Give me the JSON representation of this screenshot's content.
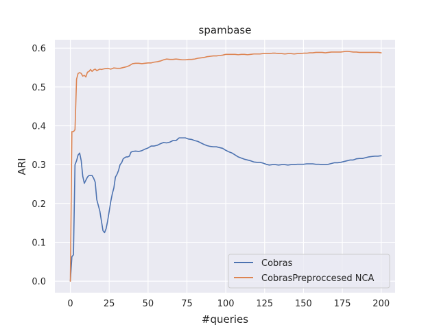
{
  "chart_data": {
    "type": "line",
    "title": "spambase",
    "xlabel": "#queries",
    "ylabel": "ARI",
    "xlim": [
      -9.95,
      208.95
    ],
    "ylim": [
      -0.0296,
      0.6216
    ],
    "xticks": [
      0,
      25,
      50,
      75,
      100,
      125,
      150,
      175,
      200
    ],
    "xtick_labels": [
      "0",
      "25",
      "50",
      "75",
      "100",
      "125",
      "150",
      "175",
      "200"
    ],
    "yticks": [
      0.0,
      0.1,
      0.2,
      0.3,
      0.4,
      0.5,
      0.6
    ],
    "ytick_labels": [
      "0.0",
      "0.1",
      "0.2",
      "0.3",
      "0.4",
      "0.5",
      "0.6"
    ],
    "grid": true,
    "legend": "lower-right",
    "colors": {
      "background": "#eaeaf2",
      "grid": "#ffffff",
      "text": "#262626"
    },
    "series": [
      {
        "name": "Cobras",
        "color": "#4c72b0",
        "points": [
          [
            0,
            0.0
          ],
          [
            1,
            0.063
          ],
          [
            2,
            0.068
          ],
          [
            3,
            0.3
          ],
          [
            4,
            0.31
          ],
          [
            5,
            0.325
          ],
          [
            6,
            0.33
          ],
          [
            7,
            0.31
          ],
          [
            8,
            0.27
          ],
          [
            9,
            0.252
          ],
          [
            10,
            0.26
          ],
          [
            11,
            0.268
          ],
          [
            12,
            0.272
          ],
          [
            13,
            0.272
          ],
          [
            14,
            0.272
          ],
          [
            15,
            0.265
          ],
          [
            16,
            0.255
          ],
          [
            17,
            0.21
          ],
          [
            18,
            0.195
          ],
          [
            19,
            0.18
          ],
          [
            20,
            0.155
          ],
          [
            21,
            0.13
          ],
          [
            22,
            0.125
          ],
          [
            23,
            0.135
          ],
          [
            24,
            0.155
          ],
          [
            25,
            0.18
          ],
          [
            26,
            0.205
          ],
          [
            27,
            0.225
          ],
          [
            28,
            0.24
          ],
          [
            29,
            0.268
          ],
          [
            30,
            0.275
          ],
          [
            31,
            0.285
          ],
          [
            32,
            0.3
          ],
          [
            33,
            0.305
          ],
          [
            34,
            0.315
          ],
          [
            35,
            0.318
          ],
          [
            36,
            0.32
          ],
          [
            37,
            0.32
          ],
          [
            38,
            0.322
          ],
          [
            39,
            0.332
          ],
          [
            40,
            0.334
          ],
          [
            42,
            0.335
          ],
          [
            44,
            0.334
          ],
          [
            46,
            0.336
          ],
          [
            48,
            0.34
          ],
          [
            50,
            0.343
          ],
          [
            52,
            0.348
          ],
          [
            54,
            0.348
          ],
          [
            56,
            0.35
          ],
          [
            58,
            0.354
          ],
          [
            60,
            0.357
          ],
          [
            62,
            0.356
          ],
          [
            64,
            0.358
          ],
          [
            66,
            0.362
          ],
          [
            68,
            0.362
          ],
          [
            70,
            0.369
          ],
          [
            72,
            0.369
          ],
          [
            74,
            0.369
          ],
          [
            76,
            0.366
          ],
          [
            78,
            0.365
          ],
          [
            80,
            0.362
          ],
          [
            82,
            0.36
          ],
          [
            84,
            0.356
          ],
          [
            86,
            0.352
          ],
          [
            88,
            0.349
          ],
          [
            90,
            0.347
          ],
          [
            92,
            0.346
          ],
          [
            94,
            0.346
          ],
          [
            96,
            0.344
          ],
          [
            98,
            0.342
          ],
          [
            100,
            0.337
          ],
          [
            102,
            0.333
          ],
          [
            104,
            0.33
          ],
          [
            106,
            0.325
          ],
          [
            108,
            0.32
          ],
          [
            110,
            0.317
          ],
          [
            112,
            0.314
          ],
          [
            114,
            0.312
          ],
          [
            116,
            0.31
          ],
          [
            118,
            0.307
          ],
          [
            120,
            0.306
          ],
          [
            122,
            0.306
          ],
          [
            124,
            0.304
          ],
          [
            126,
            0.301
          ],
          [
            128,
            0.299
          ],
          [
            130,
            0.3
          ],
          [
            132,
            0.3
          ],
          [
            134,
            0.299
          ],
          [
            136,
            0.3
          ],
          [
            138,
            0.3
          ],
          [
            140,
            0.299
          ],
          [
            142,
            0.3
          ],
          [
            144,
            0.3
          ],
          [
            146,
            0.301
          ],
          [
            148,
            0.301
          ],
          [
            150,
            0.301
          ],
          [
            152,
            0.302
          ],
          [
            154,
            0.302
          ],
          [
            156,
            0.302
          ],
          [
            158,
            0.301
          ],
          [
            160,
            0.301
          ],
          [
            162,
            0.3
          ],
          [
            164,
            0.3
          ],
          [
            166,
            0.301
          ],
          [
            168,
            0.303
          ],
          [
            170,
            0.305
          ],
          [
            172,
            0.305
          ],
          [
            174,
            0.306
          ],
          [
            176,
            0.308
          ],
          [
            178,
            0.31
          ],
          [
            180,
            0.312
          ],
          [
            182,
            0.312
          ],
          [
            184,
            0.315
          ],
          [
            186,
            0.316
          ],
          [
            188,
            0.316
          ],
          [
            190,
            0.318
          ],
          [
            192,
            0.32
          ],
          [
            194,
            0.321
          ],
          [
            196,
            0.322
          ],
          [
            198,
            0.322
          ],
          [
            200,
            0.323
          ]
        ]
      },
      {
        "name": "CobrasPreproccesed NCA",
        "color": "#dd8452",
        "points": [
          [
            0,
            0.0
          ],
          [
            1,
            0.385
          ],
          [
            2,
            0.385
          ],
          [
            3,
            0.39
          ],
          [
            4,
            0.52
          ],
          [
            5,
            0.535
          ],
          [
            6,
            0.537
          ],
          [
            7,
            0.535
          ],
          [
            8,
            0.528
          ],
          [
            9,
            0.53
          ],
          [
            10,
            0.526
          ],
          [
            11,
            0.538
          ],
          [
            12,
            0.54
          ],
          [
            13,
            0.545
          ],
          [
            14,
            0.54
          ],
          [
            15,
            0.544
          ],
          [
            16,
            0.546
          ],
          [
            17,
            0.542
          ],
          [
            18,
            0.544
          ],
          [
            19,
            0.546
          ],
          [
            20,
            0.545
          ],
          [
            22,
            0.547
          ],
          [
            24,
            0.548
          ],
          [
            26,
            0.546
          ],
          [
            28,
            0.549
          ],
          [
            30,
            0.548
          ],
          [
            32,
            0.548
          ],
          [
            34,
            0.55
          ],
          [
            36,
            0.552
          ],
          [
            38,
            0.555
          ],
          [
            40,
            0.56
          ],
          [
            42,
            0.561
          ],
          [
            44,
            0.561
          ],
          [
            46,
            0.56
          ],
          [
            48,
            0.561
          ],
          [
            50,
            0.562
          ],
          [
            52,
            0.562
          ],
          [
            54,
            0.564
          ],
          [
            56,
            0.565
          ],
          [
            58,
            0.567
          ],
          [
            60,
            0.57
          ],
          [
            62,
            0.572
          ],
          [
            64,
            0.571
          ],
          [
            66,
            0.571
          ],
          [
            68,
            0.572
          ],
          [
            70,
            0.571
          ],
          [
            72,
            0.57
          ],
          [
            74,
            0.57
          ],
          [
            76,
            0.571
          ],
          [
            78,
            0.571
          ],
          [
            80,
            0.572
          ],
          [
            82,
            0.574
          ],
          [
            84,
            0.575
          ],
          [
            86,
            0.576
          ],
          [
            88,
            0.578
          ],
          [
            90,
            0.579
          ],
          [
            92,
            0.58
          ],
          [
            94,
            0.58
          ],
          [
            96,
            0.581
          ],
          [
            98,
            0.582
          ],
          [
            100,
            0.584
          ],
          [
            102,
            0.584
          ],
          [
            104,
            0.584
          ],
          [
            106,
            0.584
          ],
          [
            108,
            0.583
          ],
          [
            110,
            0.584
          ],
          [
            112,
            0.584
          ],
          [
            114,
            0.583
          ],
          [
            116,
            0.584
          ],
          [
            118,
            0.585
          ],
          [
            120,
            0.585
          ],
          [
            122,
            0.585
          ],
          [
            124,
            0.586
          ],
          [
            126,
            0.586
          ],
          [
            128,
            0.586
          ],
          [
            130,
            0.587
          ],
          [
            132,
            0.587
          ],
          [
            134,
            0.586
          ],
          [
            136,
            0.586
          ],
          [
            138,
            0.585
          ],
          [
            140,
            0.586
          ],
          [
            142,
            0.586
          ],
          [
            144,
            0.585
          ],
          [
            146,
            0.586
          ],
          [
            148,
            0.586
          ],
          [
            150,
            0.587
          ],
          [
            152,
            0.587
          ],
          [
            154,
            0.588
          ],
          [
            156,
            0.588
          ],
          [
            158,
            0.589
          ],
          [
            160,
            0.589
          ],
          [
            162,
            0.589
          ],
          [
            164,
            0.588
          ],
          [
            166,
            0.589
          ],
          [
            168,
            0.59
          ],
          [
            170,
            0.59
          ],
          [
            172,
            0.59
          ],
          [
            174,
            0.59
          ],
          [
            176,
            0.591
          ],
          [
            178,
            0.592
          ],
          [
            180,
            0.591
          ],
          [
            182,
            0.59
          ],
          [
            184,
            0.59
          ],
          [
            186,
            0.589
          ],
          [
            188,
            0.589
          ],
          [
            190,
            0.589
          ],
          [
            192,
            0.589
          ],
          [
            194,
            0.589
          ],
          [
            196,
            0.589
          ],
          [
            198,
            0.589
          ],
          [
            200,
            0.588
          ]
        ]
      }
    ]
  }
}
